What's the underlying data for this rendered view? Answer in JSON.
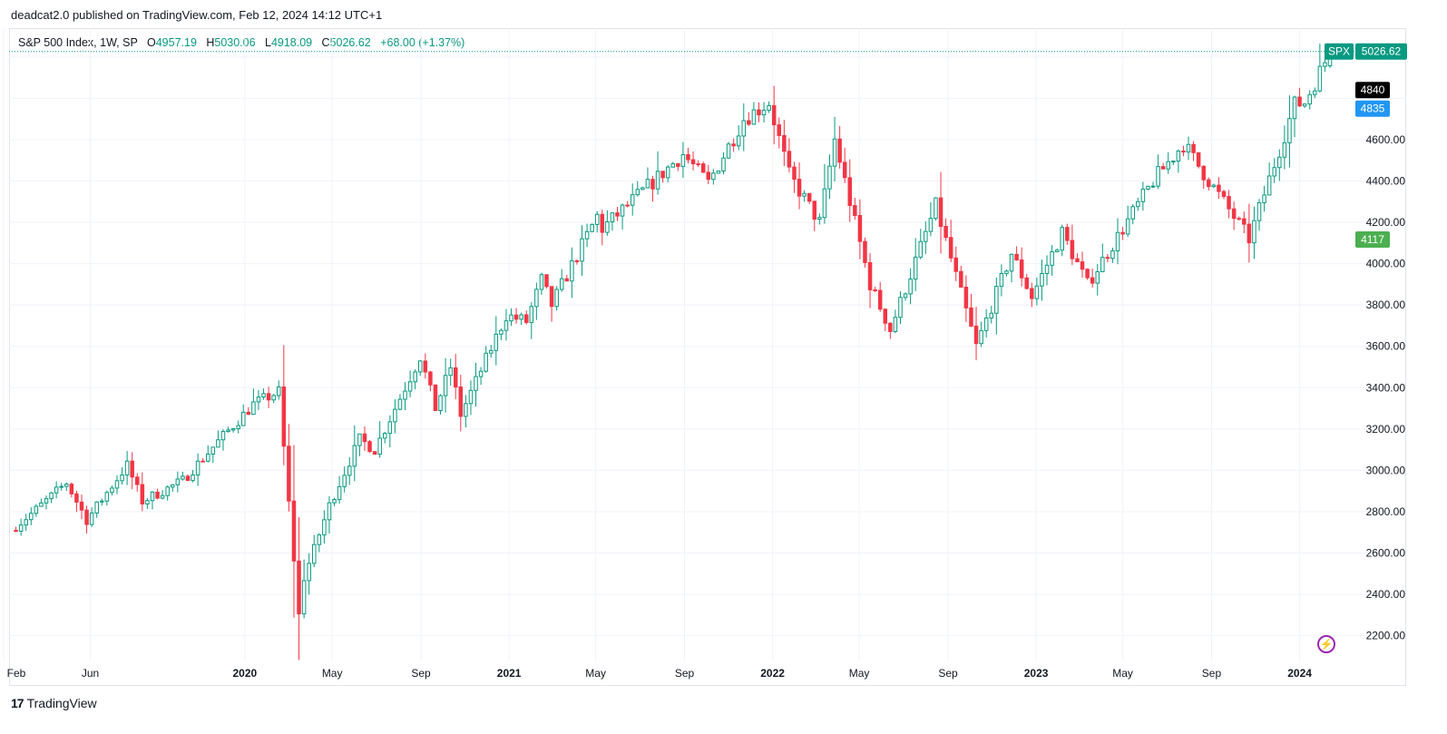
{
  "header": {
    "publisher_line": "deadcat2.0 published on TradingView.com, Feb 12, 2024 14:12 UTC+1"
  },
  "legend": {
    "symbol_line": "S&P 500 Index, 1W, SP",
    "open_label": "O",
    "open": "4957.19",
    "high_label": "H",
    "high": "5030.06",
    "low_label": "L",
    "low": "4918.09",
    "close_label": "C",
    "close": "5026.62",
    "change": "+68.00 (+1.37%)"
  },
  "price_tags": {
    "symbol": "SPX",
    "last": "5026.62",
    "black_tag": "4840",
    "blue_tag": "4835",
    "green_tag": "4117"
  },
  "footer": {
    "brand": "TradingView",
    "logo_text": "17"
  },
  "colors": {
    "up": "#089981",
    "down": "#f23645",
    "blue": "#2196f3",
    "black": "#000000"
  },
  "icons": {
    "bolt": "lightning-bolt-icon"
  },
  "chart_data": {
    "type": "candlestick",
    "timeframe": "1W",
    "x_ticks": [
      "Feb",
      "Jun",
      "2020",
      "May",
      "Sep",
      "2021",
      "May",
      "Sep",
      "2022",
      "May",
      "Sep",
      "2023",
      "May",
      "Sep",
      "2024"
    ],
    "y_ticks": [
      2200,
      2400,
      2600,
      2800,
      3000,
      3200,
      3400,
      3600,
      3800,
      4000,
      4200,
      4400,
      4600,
      4800,
      5000
    ],
    "y_tick_labels": [
      "2200.00",
      "2400.00",
      "2600.00",
      "2800.00",
      "3000.00",
      "3200.00",
      "3400.00",
      "3600.00",
      "3800.00",
      "4000.00",
      "4200.00",
      "4400.00",
      "4600.00",
      "",
      ""
    ],
    "ylim": [
      2080,
      5100
    ],
    "grid": true,
    "last_price": 5026.62,
    "anchors": [
      [
        "2019-02-11",
        2710
      ],
      [
        "2019-03-18",
        2810
      ],
      [
        "2019-04-29",
        2940
      ],
      [
        "2019-05-27",
        2760
      ],
      [
        "2019-07-22",
        3025
      ],
      [
        "2019-08-12",
        2850
      ],
      [
        "2019-10-07",
        2950
      ],
      [
        "2019-11-25",
        3140
      ],
      [
        "2020-01-13",
        3320
      ],
      [
        "2020-02-17",
        3380
      ],
      [
        "2020-03-16",
        2300
      ],
      [
        "2020-03-23",
        2480
      ],
      [
        "2020-04-27",
        2830
      ],
      [
        "2020-06-08",
        3150
      ],
      [
        "2020-06-29",
        3100
      ],
      [
        "2020-08-31",
        3550
      ],
      [
        "2020-09-21",
        3300
      ],
      [
        "2020-10-12",
        3500
      ],
      [
        "2020-10-26",
        3270
      ],
      [
        "2020-12-28",
        3750
      ],
      [
        "2021-01-25",
        3720
      ],
      [
        "2021-02-15",
        3920
      ],
      [
        "2021-03-01",
        3800
      ],
      [
        "2021-05-03",
        4230
      ],
      [
        "2021-05-10",
        4170
      ],
      [
        "2021-08-30",
        4530
      ],
      [
        "2021-10-04",
        4390
      ],
      [
        "2021-11-22",
        4700
      ],
      [
        "2021-12-27",
        4780
      ],
      [
        "2022-01-24",
        4430
      ],
      [
        "2022-03-07",
        4200
      ],
      [
        "2022-03-28",
        4600
      ],
      [
        "2022-05-16",
        3900
      ],
      [
        "2022-06-13",
        3680
      ],
      [
        "2022-08-15",
        4280
      ],
      [
        "2022-10-10",
        3600
      ],
      [
        "2022-11-28",
        4050
      ],
      [
        "2022-12-26",
        3840
      ],
      [
        "2023-02-06",
        4150
      ],
      [
        "2023-03-13",
        3900
      ],
      [
        "2023-06-12",
        4400
      ],
      [
        "2023-07-24",
        4580
      ],
      [
        "2023-10-23",
        4120
      ],
      [
        "2023-12-25",
        4770
      ],
      [
        "2024-01-08",
        4780
      ],
      [
        "2024-02-12",
        5026.62
      ]
    ]
  }
}
